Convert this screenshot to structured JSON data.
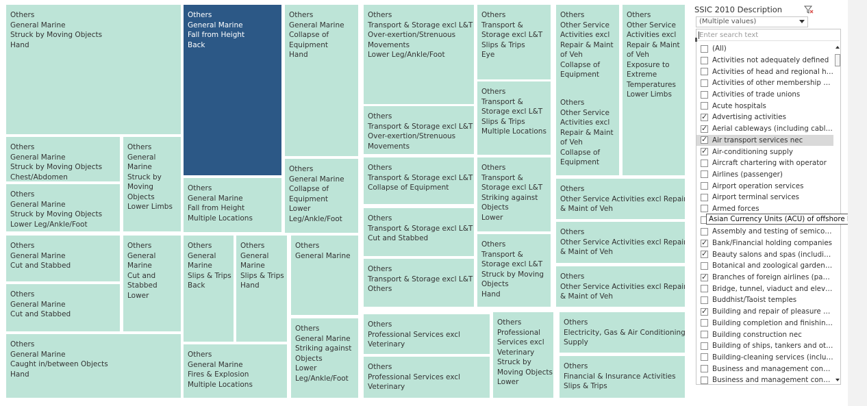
{
  "treemap": {
    "tiles": [
      {
        "lines": [
          "Others",
          "General Marine",
          "Struck by Moving Objects",
          "Hand"
        ],
        "selected": false
      },
      {
        "lines": [
          "Others",
          "General Marine",
          "Fall from Height",
          "Back"
        ],
        "selected": true
      },
      {
        "lines": [
          "Others",
          "General Marine",
          "Collapse of",
          "Equipment",
          "Hand"
        ],
        "selected": false
      },
      {
        "lines": [
          "Others",
          "Transport & Storage excl L&T",
          "Over-exertion/Strenuous",
          "Movements",
          "Lower Leg/Ankle/Foot"
        ],
        "selected": false
      },
      {
        "lines": [
          "Others",
          "Transport &",
          "Storage excl L&T",
          "Slips & Trips",
          "Eye"
        ],
        "selected": false
      },
      {
        "lines": [
          "Others",
          "Other Service",
          "Activities excl",
          "Repair & Maint",
          "of Veh",
          "Collapse of",
          "Equipment"
        ],
        "selected": false
      },
      {
        "lines": [
          "Others",
          "Other Service",
          "Activities excl",
          "Repair & Maint",
          "of Veh",
          "Exposure to",
          "Extreme",
          "Temperatures",
          "Lower Limbs"
        ],
        "selected": false
      },
      {
        "lines": [
          "Others",
          "General Marine",
          "Struck by Moving Objects",
          "Chest/Abdomen"
        ],
        "selected": false
      },
      {
        "lines": [
          "Others",
          "General",
          "Marine",
          "Struck by",
          "Moving",
          "Objects",
          "Lower Limbs"
        ],
        "selected": false
      },
      {
        "lines": [
          "Others",
          "General Marine",
          "Struck by Moving Objects",
          "Lower Leg/Ankle/Foot"
        ],
        "selected": false
      },
      {
        "lines": [
          "Others",
          "General Marine",
          "Fall from Height",
          "Multiple Locations"
        ],
        "selected": false
      },
      {
        "lines": [
          "Others",
          "General Marine",
          "Collapse of",
          "Equipment",
          "Lower",
          "Leg/Ankle/Foot"
        ],
        "selected": false
      },
      {
        "lines": [
          "Others",
          "Transport & Storage excl L&T",
          "Over-exertion/Strenuous",
          "Movements"
        ],
        "selected": false
      },
      {
        "lines": [
          "Others",
          "Transport &",
          "Storage excl L&T",
          "Slips & Trips",
          "Multiple Locations"
        ],
        "selected": false
      },
      {
        "lines": [
          "Others",
          "Other Service",
          "Activities excl",
          "Repair & Maint",
          "of Veh",
          "Collapse of",
          "Equipment"
        ],
        "selected": false
      },
      {
        "lines": [
          "Others",
          "Transport & Storage excl L&T",
          "Collapse of Equipment"
        ],
        "selected": false
      },
      {
        "lines": [
          "Others",
          "Transport &",
          "Storage excl L&T",
          "Striking against",
          "Objects",
          "Lower"
        ],
        "selected": false
      },
      {
        "lines": [
          "Others",
          "Other Service Activities excl Repair",
          "& Maint of Veh"
        ],
        "selected": false
      },
      {
        "lines": [
          "Others",
          "Transport & Storage excl L&T",
          "Cut and Stabbed"
        ],
        "selected": false
      },
      {
        "lines": [
          "Others",
          "Other Service Activities excl Repair",
          "& Maint of Veh"
        ],
        "selected": false
      },
      {
        "lines": [
          "Others",
          "General Marine",
          "Cut and Stabbed"
        ],
        "selected": false
      },
      {
        "lines": [
          "Others",
          "General",
          "Marine",
          "Cut and",
          "Stabbed",
          "Lower"
        ],
        "selected": false
      },
      {
        "lines": [
          "Others",
          "General",
          "Marine",
          "Slips & Trips",
          "Back"
        ],
        "selected": false
      },
      {
        "lines": [
          "Others",
          "General",
          "Marine",
          "Slips & Trips",
          "Hand"
        ],
        "selected": false
      },
      {
        "lines": [
          "Others",
          "General Marine"
        ],
        "selected": false
      },
      {
        "lines": [
          "Others",
          "Transport &",
          "Storage excl L&T",
          "Struck by Moving",
          "Objects",
          "Hand"
        ],
        "selected": false
      },
      {
        "lines": [
          "Others",
          "Transport & Storage excl L&T",
          "Others"
        ],
        "selected": false
      },
      {
        "lines": [
          "Others",
          "Other Service Activities excl Repair",
          "& Maint of Veh"
        ],
        "selected": false
      },
      {
        "lines": [
          "Others",
          "General Marine",
          "Cut and Stabbed"
        ],
        "selected": false
      },
      {
        "lines": [
          "Others",
          "Professional Services excl",
          "Veterinary"
        ],
        "selected": false
      },
      {
        "lines": [
          "Others",
          "Professional",
          "Services excl",
          "Veterinary",
          "Struck by",
          "Moving Objects",
          "Lower"
        ],
        "selected": false
      },
      {
        "lines": [
          "Others",
          "Electricity, Gas & Air Conditioning",
          "Supply"
        ],
        "selected": false
      },
      {
        "lines": [
          "Others",
          "General Marine",
          "Striking against",
          "Objects",
          "Lower",
          "Leg/Ankle/Foot"
        ],
        "selected": false
      },
      {
        "lines": [
          "Others",
          "General Marine",
          "Caught in/between Objects",
          "Hand"
        ],
        "selected": false
      },
      {
        "lines": [
          "Others",
          "General Marine",
          "Fires & Explosion",
          "Multiple Locations"
        ],
        "selected": false
      },
      {
        "lines": [
          "Others",
          "Professional Services excl",
          "Veterinary"
        ],
        "selected": false
      },
      {
        "lines": [
          "Others",
          "Financial & Insurance Activities",
          "Slips & Trips"
        ],
        "selected": false
      }
    ]
  },
  "filter": {
    "title": "SSIC 2010 Description",
    "dropdown_value": "(Multiple values)",
    "search_placeholder": "Enter search text",
    "tooltip": "Asian Currency Units (ACU) of offshore banks",
    "items": [
      {
        "label": "(All)",
        "checked": false,
        "highlight": false
      },
      {
        "label": "Activities not adequately defined",
        "checked": false,
        "highlight": false
      },
      {
        "label": "Activities of head and regional hea...",
        "checked": false,
        "highlight": false
      },
      {
        "label": "Activities of other membership org...",
        "checked": false,
        "highlight": false
      },
      {
        "label": "Activities of trade unions",
        "checked": false,
        "highlight": false
      },
      {
        "label": "Acute hospitals",
        "checked": false,
        "highlight": false
      },
      {
        "label": "Advertising activities",
        "checked": true,
        "highlight": false
      },
      {
        "label": "Aerial cableways (including cable c...",
        "checked": true,
        "highlight": false
      },
      {
        "label": "Air transport services nec",
        "checked": true,
        "highlight": true
      },
      {
        "label": "Air-conditioning supply",
        "checked": true,
        "highlight": false
      },
      {
        "label": "Aircraft chartering with operator",
        "checked": false,
        "highlight": false
      },
      {
        "label": "Airlines (passenger)",
        "checked": false,
        "highlight": false
      },
      {
        "label": "Airport operation services",
        "checked": false,
        "highlight": false
      },
      {
        "label": "Airport terminal services",
        "checked": false,
        "highlight": false
      },
      {
        "label": "Armed forces",
        "checked": false,
        "highlight": false
      },
      {
        "label": "",
        "checked": false,
        "highlight": false
      },
      {
        "label": "Assembly and testing of semicondu...",
        "checked": false,
        "highlight": false
      },
      {
        "label": "Bank/Financial holding companies",
        "checked": true,
        "highlight": false
      },
      {
        "label": "Beauty salons and spas (including s...",
        "checked": true,
        "highlight": false
      },
      {
        "label": "Botanical and zoological gardens a...",
        "checked": false,
        "highlight": false
      },
      {
        "label": "Branches of foreign airlines (passe...",
        "checked": true,
        "highlight": false
      },
      {
        "label": "Bridge, tunnel, viaduct and elevate...",
        "checked": false,
        "highlight": false
      },
      {
        "label": "Buddhist/Taoist temples",
        "checked": false,
        "highlight": false
      },
      {
        "label": "Building and repair of pleasure craf...",
        "checked": true,
        "highlight": false
      },
      {
        "label": "Building completion and finishing nec",
        "checked": false,
        "highlight": false
      },
      {
        "label": "Building construction nec",
        "checked": false,
        "highlight": false
      },
      {
        "label": "Building of ships, tankers and other...",
        "checked": false,
        "highlight": false
      },
      {
        "label": "Building-cleaning services (includin...",
        "checked": false,
        "highlight": false
      },
      {
        "label": "Business and management consult...",
        "checked": false,
        "highlight": false
      },
      {
        "label": "Business and management consult...",
        "checked": false,
        "highlight": false
      }
    ]
  }
}
